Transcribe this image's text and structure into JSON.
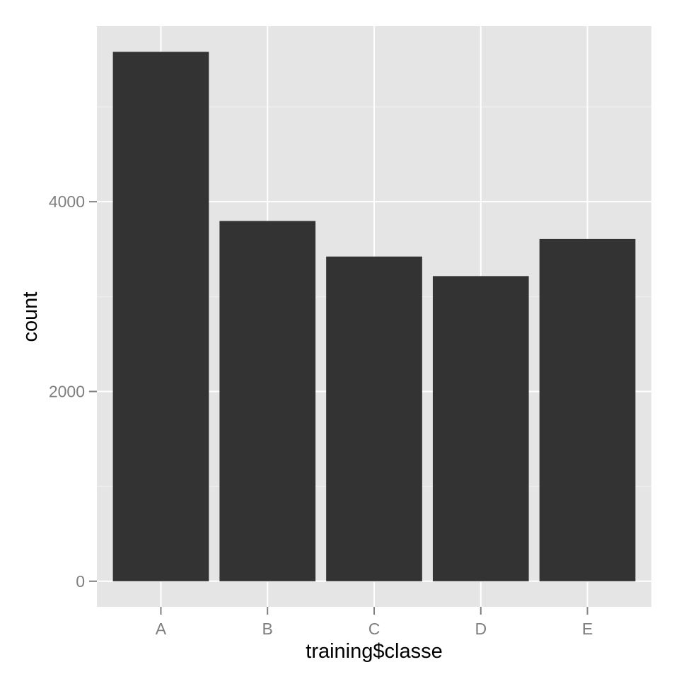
{
  "chart_data": {
    "type": "bar",
    "categories": [
      "A",
      "B",
      "C",
      "D",
      "E"
    ],
    "values": [
      5580,
      3797,
      3422,
      3216,
      3607
    ],
    "xlabel": "training$classe",
    "ylabel": "count",
    "ylim": [
      -270,
      5850
    ],
    "yticks": [
      0,
      2000,
      4000
    ],
    "ytick_labels": [
      "0",
      "2000",
      "4000"
    ],
    "grid": true,
    "legend": "none",
    "colors": {
      "panel": "#E5E5E5",
      "grid_major": "#FFFFFF",
      "grid_minor": "#F2F2F2",
      "bar": "#333333",
      "tick": "#7F7F7F"
    }
  }
}
